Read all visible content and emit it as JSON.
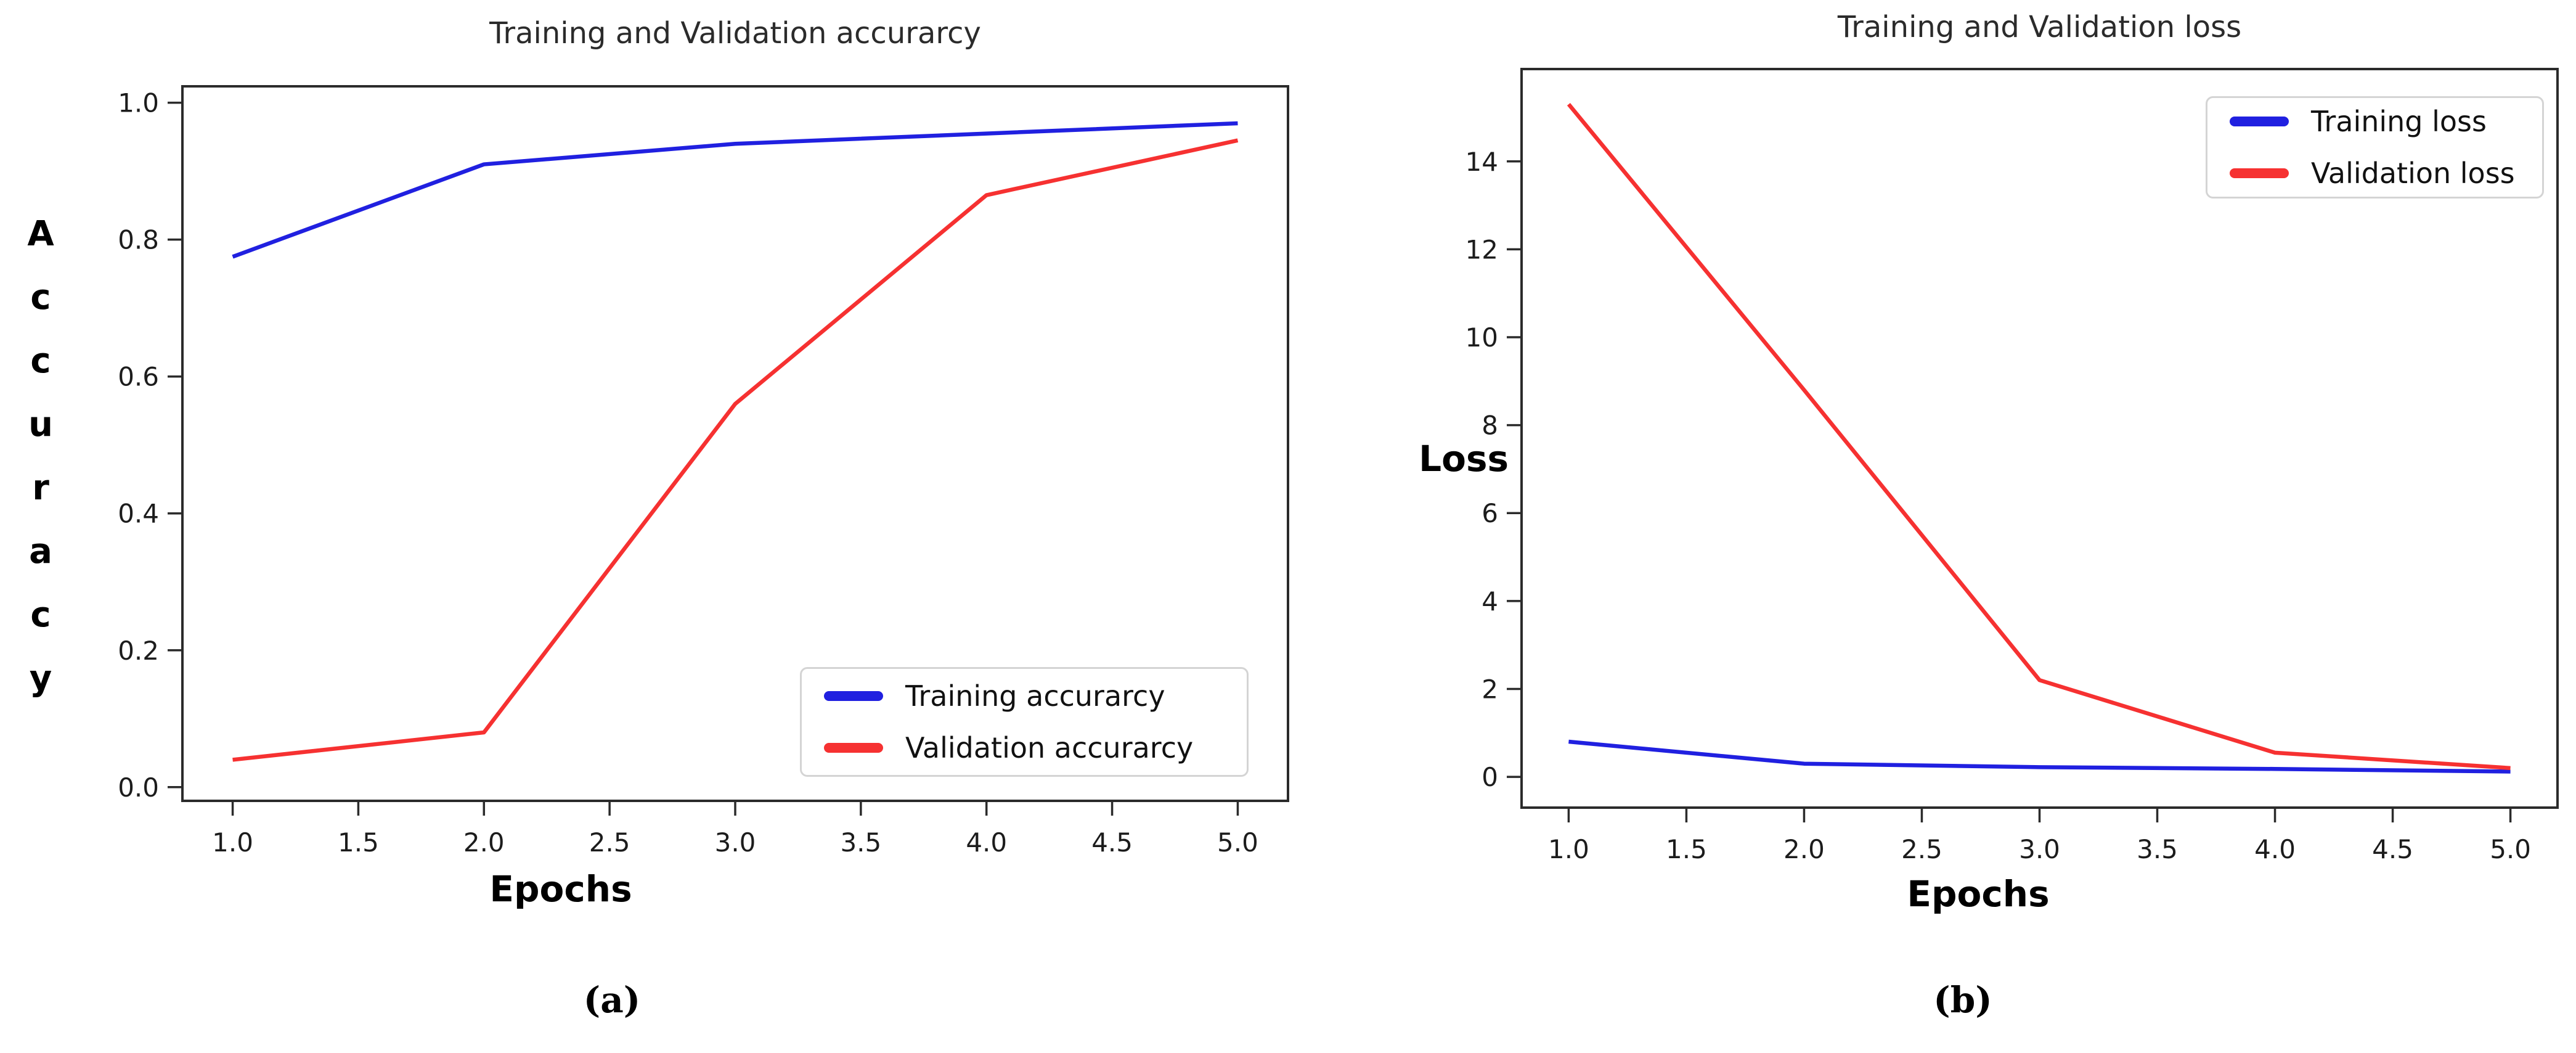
{
  "page": {
    "background": "#ffffff"
  },
  "colors": {
    "training_line": "#2020e0",
    "validation_line": "#f63131",
    "spine": "#2b2b2b",
    "tick_label": "#1c1c1c"
  },
  "chart_data": [
    {
      "type": "line",
      "title": "Training and Validation accurarcy",
      "xlabel": "Epochs",
      "ylabel": "Accuracy",
      "caption": "(a)",
      "x": [
        1.0,
        2.0,
        3.0,
        4.0,
        5.0
      ],
      "series": [
        {
          "name": "Training accurarcy",
          "color": "#2020e0",
          "values": [
            0.775,
            0.91,
            0.94,
            0.955,
            0.97
          ]
        },
        {
          "name": "Validation accurarcy",
          "color": "#f63131",
          "values": [
            0.04,
            0.08,
            0.56,
            0.865,
            0.945
          ]
        }
      ],
      "xticks": [
        "1.0",
        "1.5",
        "2.0",
        "2.5",
        "3.0",
        "3.5",
        "4.0",
        "4.5",
        "5.0"
      ],
      "yticks": [
        "0.0",
        "0.2",
        "0.4",
        "0.6",
        "0.8",
        "1.0"
      ],
      "xlim": [
        0.8,
        5.2
      ],
      "ylim": [
        -0.02,
        1.024
      ],
      "legend_position": "lower right",
      "grid": false
    },
    {
      "type": "line",
      "title": "Training and Validation loss",
      "xlabel": "Epochs",
      "ylabel": "Loss",
      "caption": "(b)",
      "x": [
        1.0,
        2.0,
        3.0,
        4.0,
        5.0
      ],
      "series": [
        {
          "name": "Training loss",
          "color": "#2020e0",
          "values": [
            0.8,
            0.3,
            0.22,
            0.18,
            0.12
          ]
        },
        {
          "name": "Validation loss",
          "color": "#f63131",
          "values": [
            15.3,
            8.8,
            2.2,
            0.55,
            0.2
          ]
        }
      ],
      "xticks": [
        "1.0",
        "1.5",
        "2.0",
        "2.5",
        "3.0",
        "3.5",
        "4.0",
        "4.5",
        "5.0"
      ],
      "yticks": [
        "0",
        "2",
        "4",
        "6",
        "8",
        "10",
        "12",
        "14"
      ],
      "xlim": [
        0.8,
        5.2
      ],
      "ylim": [
        -0.7,
        16.1
      ],
      "legend_position": "upper right",
      "grid": false
    }
  ]
}
